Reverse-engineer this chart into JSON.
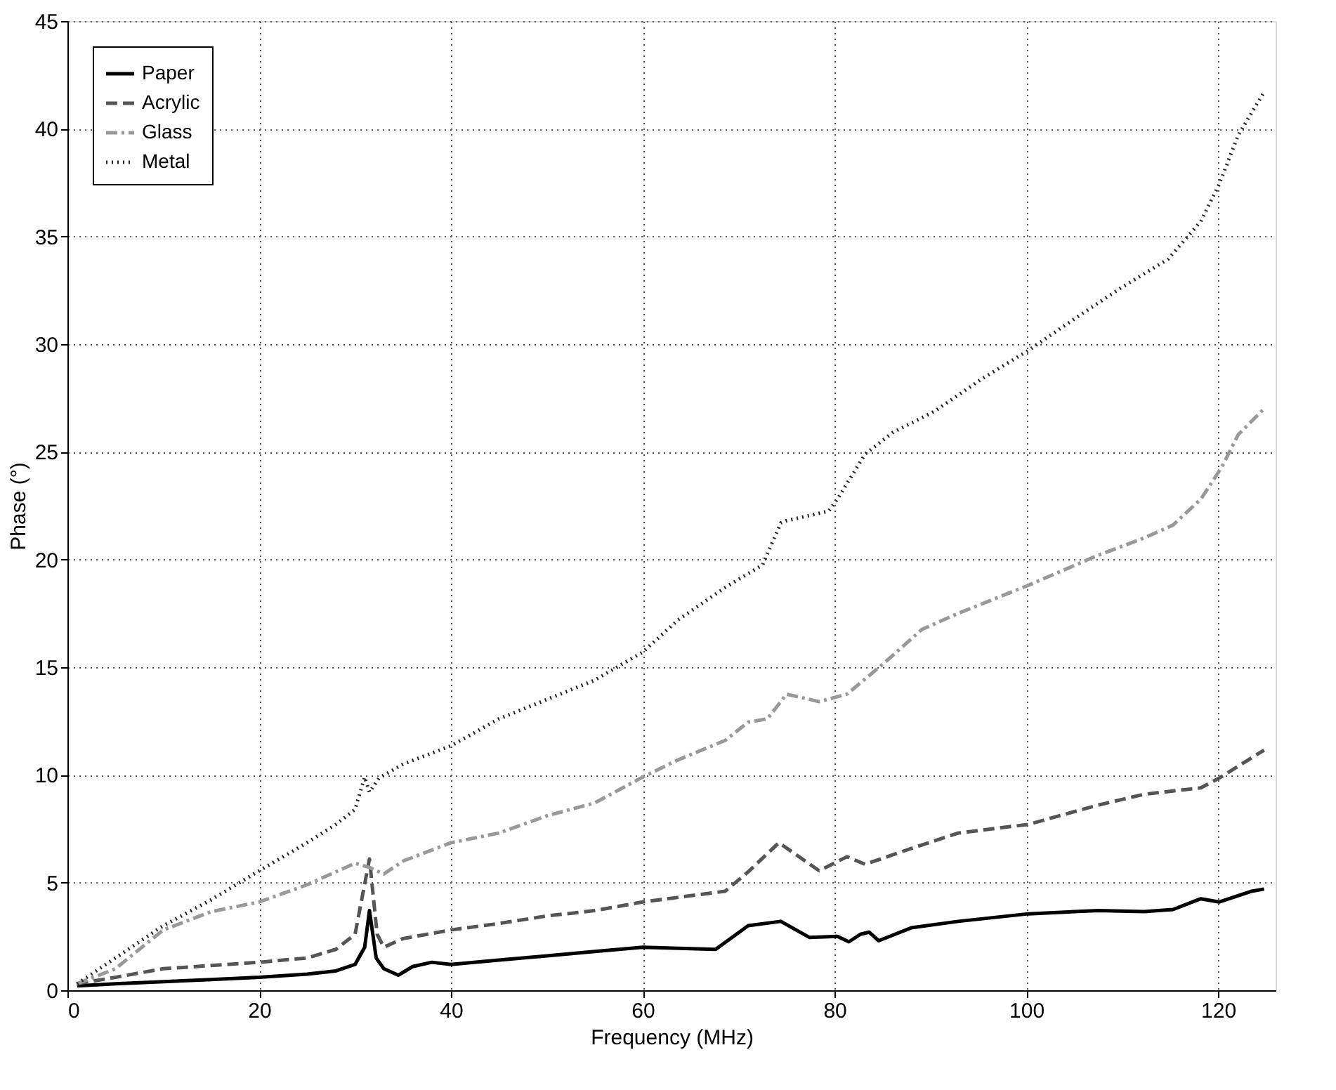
{
  "chart_data": {
    "type": "line",
    "xlabel": "Frequency (MHz)",
    "ylabel": "Phase (°)",
    "xlim": [
      0,
      126
    ],
    "ylim": [
      0,
      45
    ],
    "xticks": [
      0,
      20,
      40,
      60,
      80,
      100,
      120
    ],
    "yticks": [
      0,
      5,
      10,
      15,
      20,
      25,
      30,
      35,
      40,
      45
    ],
    "grid": true,
    "legend": "top left",
    "series": [
      {
        "name": "Paper",
        "color": "#000000",
        "line_style": "solid",
        "x": [
          1,
          5,
          10,
          15,
          20,
          25,
          28,
          30,
          31,
          31.5,
          32.2,
          33,
          34.5,
          36,
          38,
          40,
          45,
          50,
          55,
          60,
          67.6,
          71,
          74.4,
          77.4,
          80.3,
          81.5,
          82.7,
          83.6,
          84.6,
          88,
          92.9,
          100.2,
          107.5,
          112.3,
          115.3,
          118.2,
          120.1,
          123.5,
          124.8
        ],
        "values": [
          0.2,
          0.3,
          0.4,
          0.5,
          0.6,
          0.75,
          0.9,
          1.2,
          2.0,
          3.7,
          1.5,
          1.0,
          0.7,
          1.1,
          1.3,
          1.2,
          1.4,
          1.6,
          1.8,
          2.0,
          1.9,
          3.0,
          3.2,
          2.45,
          2.5,
          2.25,
          2.6,
          2.7,
          2.3,
          2.9,
          3.2,
          3.55,
          3.7,
          3.65,
          3.75,
          4.25,
          4.1,
          4.6,
          4.7
        ]
      },
      {
        "name": "Acrylic",
        "color": "#555555",
        "line_style": "dashed",
        "x": [
          1,
          5,
          10,
          20,
          25,
          28,
          30,
          31.5,
          32.3,
          33,
          35,
          40,
          45,
          50,
          55,
          60,
          68.6,
          71,
          74.2,
          78.4,
          81.3,
          83.2,
          88.1,
          92.9,
          100.2,
          107.5,
          112.3,
          118.2,
          120.1,
          124.8
        ],
        "values": [
          0.3,
          0.6,
          1.0,
          1.3,
          1.5,
          1.9,
          2.6,
          6.1,
          2.6,
          2.0,
          2.4,
          2.8,
          3.1,
          3.45,
          3.7,
          4.1,
          4.6,
          5.5,
          6.85,
          5.55,
          6.2,
          5.85,
          6.6,
          7.3,
          7.7,
          8.6,
          9.1,
          9.4,
          9.85,
          11.15
        ]
      },
      {
        "name": "Glass",
        "color": "#999999",
        "line_style": "dashdot",
        "x": [
          1,
          5,
          10,
          15,
          20,
          25,
          28,
          30,
          31.5,
          33,
          35,
          40,
          45,
          50,
          55,
          60,
          63.7,
          68.6,
          71,
          73,
          75,
          78.4,
          81.3,
          85.2,
          89.1,
          92.9,
          100.2,
          107.5,
          112.3,
          115.3,
          118.2,
          120.4,
          122.1,
          124.8
        ],
        "values": [
          0.3,
          1.0,
          2.8,
          3.65,
          4.1,
          4.9,
          5.5,
          5.9,
          5.7,
          5.4,
          6.0,
          6.85,
          7.3,
          8.1,
          8.7,
          9.9,
          10.7,
          11.6,
          12.45,
          12.6,
          13.75,
          13.4,
          13.75,
          15.2,
          16.75,
          17.5,
          18.8,
          20.2,
          21.0,
          21.6,
          22.8,
          24.3,
          25.8,
          27.0
        ]
      },
      {
        "name": "Metal",
        "color": "#222222",
        "line_style": "dotted",
        "x": [
          1,
          5,
          10,
          15,
          20,
          25,
          28,
          30,
          31,
          31.5,
          32.5,
          35,
          40,
          45,
          50,
          55,
          60,
          63.7,
          68.6,
          72.5,
          74.4,
          75,
          79.4,
          80.3,
          83.2,
          86.1,
          90.5,
          95.4,
          100.2,
          105.1,
          110,
          114.8,
          118.2,
          120.1,
          122.1,
          124.8
        ],
        "values": [
          0.3,
          1.5,
          3.0,
          4.2,
          5.55,
          6.85,
          7.7,
          8.4,
          9.9,
          9.2,
          9.85,
          10.5,
          11.35,
          12.6,
          13.5,
          14.4,
          15.7,
          17.2,
          18.7,
          19.75,
          21.7,
          21.8,
          22.25,
          22.8,
          24.9,
          25.9,
          26.9,
          28.4,
          29.7,
          31.2,
          32.65,
          33.95,
          35.7,
          37.4,
          39.7,
          41.7
        ]
      }
    ]
  }
}
